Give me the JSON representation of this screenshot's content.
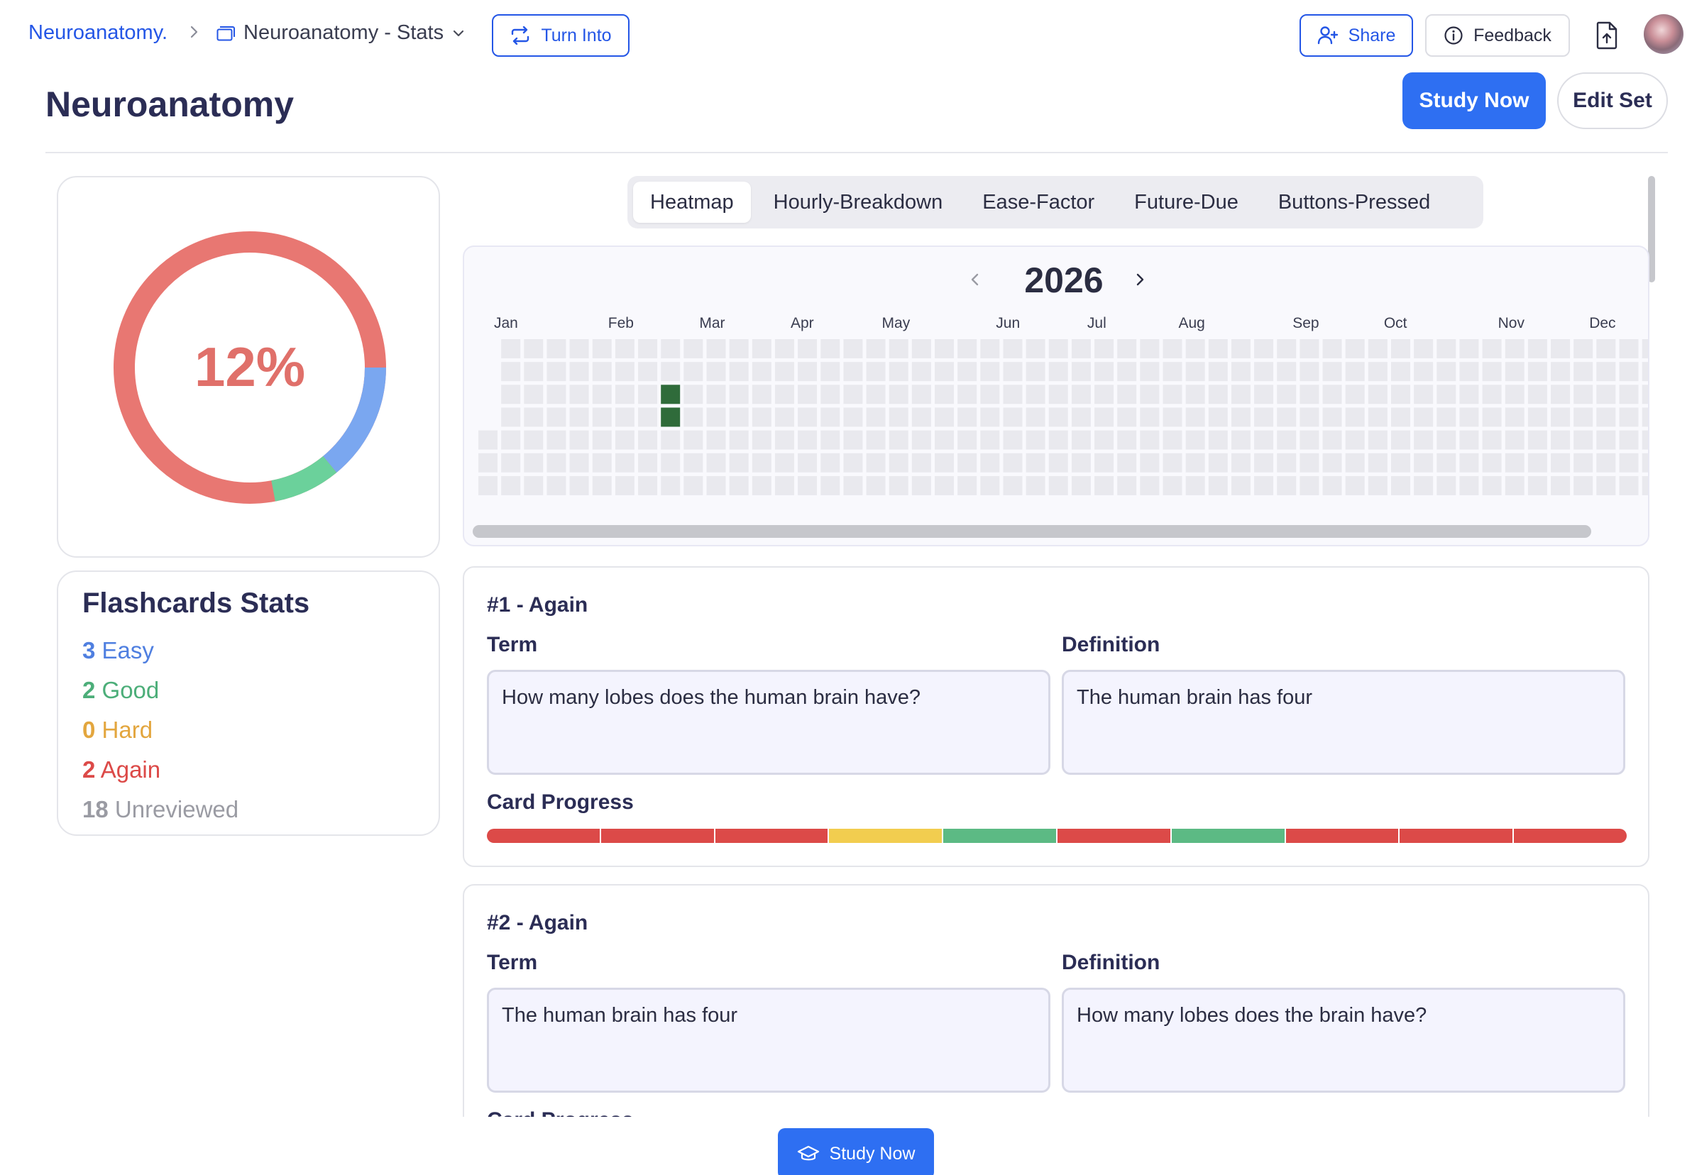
{
  "breadcrumb": {
    "root": "Neuroanatomy.",
    "page": "Neuroanatomy - Stats"
  },
  "topbar": {
    "turn_into_label": "Turn Into",
    "share_label": "Share",
    "feedback_label": "Feedback"
  },
  "header": {
    "title": "Neuroanatomy",
    "study_now_label": "Study Now",
    "edit_set_label": "Edit Set"
  },
  "progress_ring": {
    "percent_label": "12%",
    "fractions": {
      "again": 0.76,
      "easy": 0.14,
      "good": 0.08
    },
    "colors": {
      "again": "#e87772",
      "easy": "#7aa7f0",
      "good": "#6bd19b",
      "text": "#e0706a"
    }
  },
  "stats": {
    "title": "Flashcards Stats",
    "items": [
      {
        "count": "3",
        "label": "Easy",
        "color": "#4f7fe0"
      },
      {
        "count": "2",
        "label": "Good",
        "color": "#4cae79"
      },
      {
        "count": "0",
        "label": "Hard",
        "color": "#e3a63e"
      },
      {
        "count": "2",
        "label": "Again",
        "color": "#dc4a48"
      },
      {
        "count": "18",
        "label": "Unreviewed",
        "color": "#9a9ba3"
      }
    ]
  },
  "tabs": [
    {
      "label": "Heatmap",
      "active": true
    },
    {
      "label": "Hourly-Breakdown",
      "active": false
    },
    {
      "label": "Ease-Factor",
      "active": false
    },
    {
      "label": "Future-Due",
      "active": false
    },
    {
      "label": "Buttons-Pressed",
      "active": false
    }
  ],
  "heatmap": {
    "year": "2026",
    "months": [
      "Jan",
      "Feb",
      "Mar",
      "Apr",
      "May",
      "Jun",
      "Jul",
      "Aug",
      "Sep",
      "Oct",
      "Nov",
      "Dec"
    ],
    "active_days": [
      "2026-02-24",
      "2026-02-25"
    ],
    "colors": {
      "empty": "#e9e9ee",
      "active": "#2f6b3a"
    }
  },
  "cards": [
    {
      "heading": "#1 - Again",
      "term_label": "Term",
      "definition_label": "Definition",
      "term": "How many lobes does the human brain have?",
      "definition": "The human brain has four",
      "progress_label": "Card Progress",
      "progress": [
        "again",
        "again",
        "again",
        "hard",
        "good",
        "again",
        "good",
        "again",
        "again",
        "again"
      ]
    },
    {
      "heading": "#2 - Again",
      "term_label": "Term",
      "definition_label": "Definition",
      "term": "The human brain has four",
      "definition": "How many lobes does the brain have?",
      "progress_label": "Card Progress",
      "progress": []
    }
  ],
  "progress_colors": {
    "again": "#dc4a48",
    "hard": "#f2cd4f",
    "good": "#5cba84",
    "easy": "#4f7fe0"
  },
  "floating": {
    "study_now_label": "Study Now"
  }
}
